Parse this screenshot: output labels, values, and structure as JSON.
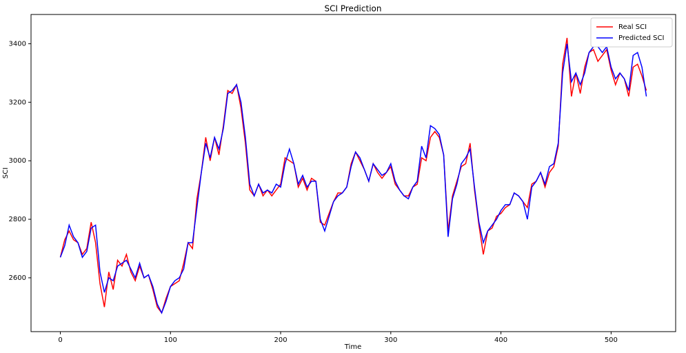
{
  "chart_data": {
    "type": "line",
    "title": "SCI Prediction",
    "x_label": "Time",
    "y_label": "SCI",
    "x": [
      0,
      4,
      8,
      12,
      16,
      20,
      24,
      28,
      32,
      36,
      40,
      44,
      48,
      52,
      56,
      60,
      64,
      68,
      72,
      76,
      80,
      84,
      88,
      92,
      96,
      100,
      104,
      108,
      112,
      116,
      120,
      124,
      128,
      132,
      136,
      140,
      144,
      148,
      152,
      156,
      160,
      164,
      168,
      172,
      176,
      180,
      184,
      188,
      192,
      196,
      200,
      204,
      208,
      212,
      216,
      220,
      224,
      228,
      232,
      236,
      240,
      244,
      248,
      252,
      256,
      260,
      264,
      268,
      272,
      276,
      280,
      284,
      288,
      292,
      296,
      300,
      304,
      308,
      312,
      316,
      320,
      324,
      328,
      332,
      336,
      340,
      344,
      348,
      352,
      356,
      360,
      364,
      368,
      372,
      376,
      380,
      384,
      388,
      392,
      396,
      400,
      404,
      408,
      412,
      416,
      420,
      424,
      428,
      432,
      436,
      440,
      444,
      448,
      452,
      456,
      460,
      464,
      468,
      472,
      476,
      480,
      484,
      488,
      492,
      496,
      500,
      504,
      508,
      512,
      516,
      520,
      524,
      528,
      532
    ],
    "series": [
      {
        "name": "Real SCI",
        "color": "#ff0000",
        "values": [
          2670,
          2730,
          2760,
          2730,
          2720,
          2680,
          2700,
          2790,
          2720,
          2580,
          2500,
          2620,
          2560,
          2660,
          2640,
          2680,
          2620,
          2590,
          2640,
          2600,
          2610,
          2560,
          2500,
          2480,
          2530,
          2570,
          2580,
          2590,
          2650,
          2720,
          2700,
          2870,
          2960,
          3080,
          3000,
          3080,
          3020,
          3120,
          3240,
          3230,
          3260,
          3180,
          3060,
          2900,
          2880,
          2920,
          2880,
          2900,
          2880,
          2900,
          2920,
          3010,
          3000,
          2990,
          2910,
          2940,
          2900,
          2940,
          2930,
          2790,
          2780,
          2820,
          2860,
          2890,
          2890,
          2910,
          2990,
          3030,
          3000,
          2970,
          2930,
          2990,
          2960,
          2940,
          2960,
          2980,
          2920,
          2900,
          2880,
          2880,
          2910,
          2920,
          3010,
          3000,
          3080,
          3100,
          3080,
          3020,
          2760,
          2880,
          2930,
          2980,
          2990,
          3060,
          2900,
          2780,
          2680,
          2760,
          2770,
          2810,
          2820,
          2840,
          2850,
          2890,
          2880,
          2860,
          2840,
          2920,
          2930,
          2960,
          2910,
          2960,
          2980,
          3050,
          3330,
          3420,
          3220,
          3300,
          3230,
          3320,
          3370,
          3380,
          3340,
          3360,
          3380,
          3310,
          3260,
          3300,
          3280,
          3220,
          3320,
          3330,
          3290,
          3240
        ]
      },
      {
        "name": "Predicted SCI",
        "color": "#0000ff",
        "values": [
          2670,
          2710,
          2780,
          2740,
          2720,
          2670,
          2690,
          2770,
          2780,
          2620,
          2550,
          2600,
          2590,
          2640,
          2650,
          2660,
          2630,
          2600,
          2650,
          2600,
          2610,
          2570,
          2510,
          2480,
          2520,
          2570,
          2590,
          2600,
          2630,
          2720,
          2720,
          2840,
          2960,
          3060,
          3010,
          3080,
          3040,
          3110,
          3230,
          3240,
          3260,
          3200,
          3080,
          2920,
          2880,
          2920,
          2890,
          2900,
          2890,
          2920,
          2910,
          2990,
          3040,
          2990,
          2920,
          2950,
          2910,
          2930,
          2930,
          2800,
          2760,
          2810,
          2860,
          2880,
          2890,
          2910,
          2980,
          3030,
          3010,
          2970,
          2930,
          2990,
          2970,
          2950,
          2960,
          2990,
          2930,
          2900,
          2880,
          2870,
          2910,
          2930,
          3050,
          3010,
          3120,
          3110,
          3090,
          3020,
          2740,
          2870,
          2920,
          2990,
          3010,
          3040,
          2910,
          2790,
          2720,
          2760,
          2780,
          2800,
          2830,
          2850,
          2850,
          2890,
          2880,
          2860,
          2800,
          2910,
          2930,
          2960,
          2920,
          2980,
          2990,
          3060,
          3300,
          3400,
          3270,
          3300,
          3260,
          3300,
          3370,
          3390,
          3390,
          3370,
          3390,
          3320,
          3280,
          3300,
          3280,
          3240,
          3360,
          3370,
          3320,
          3220
        ]
      }
    ],
    "xlim": [
      -26.6,
      558.6
    ],
    "ylim": [
      2416,
      3500
    ],
    "xticks": [
      0,
      100,
      200,
      300,
      400,
      500
    ],
    "yticks": [
      2600,
      2800,
      3000,
      3200,
      3400
    ],
    "legend": "upper right"
  }
}
